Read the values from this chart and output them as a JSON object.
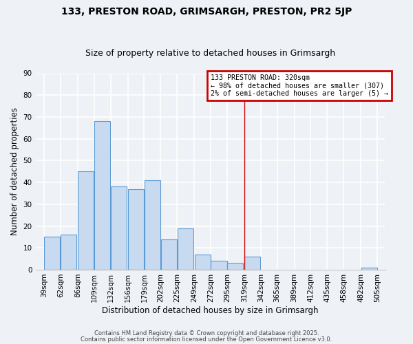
{
  "title": "133, PRESTON ROAD, GRIMSARGH, PRESTON, PR2 5JP",
  "subtitle": "Size of property relative to detached houses in Grimsargh",
  "xlabel": "Distribution of detached houses by size in Grimsargh",
  "ylabel": "Number of detached properties",
  "bar_left_edges": [
    39,
    62,
    86,
    109,
    132,
    156,
    179,
    202,
    225,
    249,
    272,
    295,
    319,
    342,
    365,
    389,
    412,
    435,
    458,
    482
  ],
  "bar_heights": [
    15,
    16,
    45,
    68,
    38,
    37,
    41,
    14,
    19,
    7,
    4,
    3,
    6,
    0,
    0,
    0,
    0,
    0,
    0,
    1
  ],
  "bin_width": 23,
  "bar_facecolor": "#c8daf0",
  "bar_edgecolor": "#5a9bd5",
  "vline_x": 319,
  "vline_color": "#cc0000",
  "ylim": [
    0,
    90
  ],
  "yticks": [
    0,
    10,
    20,
    30,
    40,
    50,
    60,
    70,
    80,
    90
  ],
  "xtick_labels": [
    "39sqm",
    "62sqm",
    "86sqm",
    "109sqm",
    "132sqm",
    "156sqm",
    "179sqm",
    "202sqm",
    "225sqm",
    "249sqm",
    "272sqm",
    "295sqm",
    "319sqm",
    "342sqm",
    "365sqm",
    "389sqm",
    "412sqm",
    "435sqm",
    "458sqm",
    "482sqm",
    "505sqm"
  ],
  "xtick_positions": [
    39,
    62,
    86,
    109,
    132,
    156,
    179,
    202,
    225,
    249,
    272,
    295,
    319,
    342,
    365,
    389,
    412,
    435,
    458,
    482,
    505
  ],
  "legend_title": "133 PRESTON ROAD: 320sqm",
  "legend_line1": "← 98% of detached houses are smaller (307)",
  "legend_line2": "2% of semi-detached houses are larger (5) →",
  "legend_box_color": "#cc0000",
  "footer1": "Contains HM Land Registry data © Crown copyright and database right 2025.",
  "footer2": "Contains public sector information licensed under the Open Government Licence v3.0.",
  "background_color": "#eef2f7",
  "plot_bg_color": "#eef2f7",
  "grid_color": "#ffffff",
  "title_fontsize": 10,
  "subtitle_fontsize": 9,
  "axis_label_fontsize": 8.5,
  "tick_fontsize": 7.5
}
